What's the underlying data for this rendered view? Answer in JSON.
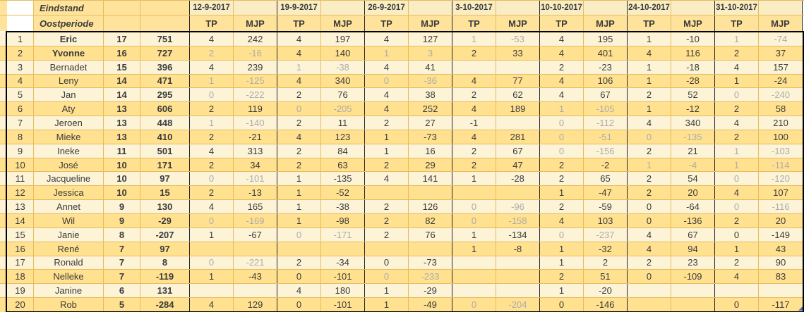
{
  "header": {
    "title": "Eindstand",
    "subtitle": "Oostperiode",
    "dates": [
      "12-9-2017",
      "19-9-2017",
      "26-9-2017",
      "3-10-2017",
      "10-10-2017",
      "24-10-2017",
      "31-10-2017"
    ],
    "tp_label": "TP",
    "mjp_label": "MJP"
  },
  "colors": {
    "band_light": "#FDF3D6",
    "band_gold": "#FFE18F",
    "header_gold": "#FFE39B",
    "header_pale": "#FAEDC4",
    "grid_line": "#E5BC5F",
    "dark_line": "#262626",
    "text": "#3B3B3B",
    "text_dim": "#ACACAC",
    "marker_blue": "#4A6FB5"
  },
  "rows": [
    {
      "rank": "1",
      "name": "Eric",
      "bold": true,
      "total_tp": "17",
      "total_mjp": "751",
      "scores": [
        {
          "tp": "4",
          "mjp": "242",
          "dim": false
        },
        {
          "tp": "4",
          "mjp": "197",
          "dim": false
        },
        {
          "tp": "4",
          "mjp": "127",
          "dim": false
        },
        {
          "tp": "1",
          "mjp": "-53",
          "dim": true
        },
        {
          "tp": "4",
          "mjp": "195",
          "dim": false
        },
        {
          "tp": "1",
          "mjp": "-10",
          "dim": false
        },
        {
          "tp": "1",
          "mjp": "-74",
          "dim": true
        }
      ]
    },
    {
      "rank": "2",
      "name": "Yvonne",
      "bold": true,
      "total_tp": "16",
      "total_mjp": "727",
      "scores": [
        {
          "tp": "2",
          "mjp": "-16",
          "dim": true
        },
        {
          "tp": "4",
          "mjp": "140",
          "dim": false
        },
        {
          "tp": "1",
          "mjp": "3",
          "dim": true
        },
        {
          "tp": "2",
          "mjp": "33",
          "dim": false
        },
        {
          "tp": "4",
          "mjp": "401",
          "dim": false
        },
        {
          "tp": "4",
          "mjp": "116",
          "dim": false
        },
        {
          "tp": "2",
          "mjp": "37",
          "dim": false
        }
      ]
    },
    {
      "rank": "3",
      "name": "Bernadet",
      "bold": false,
      "total_tp": "15",
      "total_mjp": "396",
      "scores": [
        {
          "tp": "4",
          "mjp": "239",
          "dim": false
        },
        {
          "tp": "1",
          "mjp": "-38",
          "dim": true
        },
        {
          "tp": "4",
          "mjp": "41",
          "dim": false
        },
        {
          "tp": "",
          "mjp": "",
          "dim": false
        },
        {
          "tp": "2",
          "mjp": "-23",
          "dim": false
        },
        {
          "tp": "1",
          "mjp": "-18",
          "dim": false
        },
        {
          "tp": "4",
          "mjp": "157",
          "dim": false
        }
      ]
    },
    {
      "rank": "4",
      "name": "Leny",
      "bold": false,
      "total_tp": "14",
      "total_mjp": "471",
      "scores": [
        {
          "tp": "1",
          "mjp": "-125",
          "dim": true
        },
        {
          "tp": "4",
          "mjp": "340",
          "dim": false
        },
        {
          "tp": "0",
          "mjp": "-36",
          "dim": true
        },
        {
          "tp": "4",
          "mjp": "77",
          "dim": false
        },
        {
          "tp": "4",
          "mjp": "106",
          "dim": false
        },
        {
          "tp": "1",
          "mjp": "-28",
          "dim": false
        },
        {
          "tp": "1",
          "mjp": "-24",
          "dim": false
        }
      ]
    },
    {
      "rank": "5",
      "name": "Jan",
      "bold": false,
      "total_tp": "14",
      "total_mjp": "295",
      "scores": [
        {
          "tp": "0",
          "mjp": "-222",
          "dim": true
        },
        {
          "tp": "2",
          "mjp": "76",
          "dim": false
        },
        {
          "tp": "4",
          "mjp": "38",
          "dim": false
        },
        {
          "tp": "2",
          "mjp": "62",
          "dim": false
        },
        {
          "tp": "4",
          "mjp": "67",
          "dim": false
        },
        {
          "tp": "2",
          "mjp": "52",
          "dim": false
        },
        {
          "tp": "0",
          "mjp": "-240",
          "dim": true
        }
      ]
    },
    {
      "rank": "6",
      "name": "Aty",
      "bold": false,
      "total_tp": "13",
      "total_mjp": "606",
      "scores": [
        {
          "tp": "2",
          "mjp": "119",
          "dim": false
        },
        {
          "tp": "0",
          "mjp": "-205",
          "dim": true
        },
        {
          "tp": "4",
          "mjp": "252",
          "dim": false
        },
        {
          "tp": "4",
          "mjp": "189",
          "dim": false
        },
        {
          "tp": "1",
          "mjp": "-105",
          "dim": true
        },
        {
          "tp": "1",
          "mjp": "-12",
          "dim": false
        },
        {
          "tp": "2",
          "mjp": "58",
          "dim": false
        }
      ]
    },
    {
      "rank": "7",
      "name": "Jeroen",
      "bold": false,
      "total_tp": "13",
      "total_mjp": "448",
      "scores": [
        {
          "tp": "1",
          "mjp": "-140",
          "dim": true
        },
        {
          "tp": "2",
          "mjp": "11",
          "dim": false
        },
        {
          "tp": "2",
          "mjp": "27",
          "dim": false
        },
        {
          "tp": "-1",
          "mjp": "",
          "dim": false
        },
        {
          "tp": "0",
          "mjp": "-112",
          "dim": true
        },
        {
          "tp": "4",
          "mjp": "340",
          "dim": false
        },
        {
          "tp": "4",
          "mjp": "210",
          "dim": false
        }
      ]
    },
    {
      "rank": "8",
      "name": "Mieke",
      "bold": false,
      "total_tp": "13",
      "total_mjp": "410",
      "scores": [
        {
          "tp": "2",
          "mjp": "-21",
          "dim": false
        },
        {
          "tp": "4",
          "mjp": "123",
          "dim": false
        },
        {
          "tp": "1",
          "mjp": "-73",
          "dim": false
        },
        {
          "tp": "4",
          "mjp": "281",
          "dim": false
        },
        {
          "tp": "0",
          "mjp": "-51",
          "dim": true
        },
        {
          "tp": "0",
          "mjp": "-135",
          "dim": true
        },
        {
          "tp": "2",
          "mjp": "100",
          "dim": false
        }
      ]
    },
    {
      "rank": "9",
      "name": "Ineke",
      "bold": false,
      "total_tp": "11",
      "total_mjp": "501",
      "scores": [
        {
          "tp": "4",
          "mjp": "313",
          "dim": false
        },
        {
          "tp": "2",
          "mjp": "84",
          "dim": false
        },
        {
          "tp": "1",
          "mjp": "16",
          "dim": false
        },
        {
          "tp": "2",
          "mjp": "67",
          "dim": false
        },
        {
          "tp": "0",
          "mjp": "-156",
          "dim": true
        },
        {
          "tp": "2",
          "mjp": "21",
          "dim": false
        },
        {
          "tp": "1",
          "mjp": "-103",
          "dim": true
        }
      ]
    },
    {
      "rank": "10",
      "name": "José",
      "bold": false,
      "total_tp": "10",
      "total_mjp": "171",
      "scores": [
        {
          "tp": "2",
          "mjp": "34",
          "dim": false
        },
        {
          "tp": "2",
          "mjp": "63",
          "dim": false
        },
        {
          "tp": "2",
          "mjp": "29",
          "dim": false
        },
        {
          "tp": "2",
          "mjp": "47",
          "dim": false
        },
        {
          "tp": "2",
          "mjp": "-2",
          "dim": false
        },
        {
          "tp": "1",
          "mjp": "-4",
          "dim": true
        },
        {
          "tp": "1",
          "mjp": "-114",
          "dim": true
        }
      ]
    },
    {
      "rank": "11",
      "name": "Jacqueline",
      "bold": false,
      "total_tp": "10",
      "total_mjp": "97",
      "scores": [
        {
          "tp": "0",
          "mjp": "-101",
          "dim": true
        },
        {
          "tp": "1",
          "mjp": "-135",
          "dim": false
        },
        {
          "tp": "4",
          "mjp": "141",
          "dim": false
        },
        {
          "tp": "1",
          "mjp": "-28",
          "dim": false
        },
        {
          "tp": "2",
          "mjp": "65",
          "dim": false
        },
        {
          "tp": "2",
          "mjp": "54",
          "dim": false
        },
        {
          "tp": "0",
          "mjp": "-120",
          "dim": true
        }
      ]
    },
    {
      "rank": "12",
      "name": "Jessica",
      "bold": false,
      "total_tp": "10",
      "total_mjp": "15",
      "scores": [
        {
          "tp": "2",
          "mjp": "-13",
          "dim": false
        },
        {
          "tp": "1",
          "mjp": "-52",
          "dim": false
        },
        {
          "tp": "",
          "mjp": "",
          "dim": false
        },
        {
          "tp": "",
          "mjp": "",
          "dim": false
        },
        {
          "tp": "1",
          "mjp": "-47",
          "dim": false
        },
        {
          "tp": "2",
          "mjp": "20",
          "dim": false
        },
        {
          "tp": "4",
          "mjp": "107",
          "dim": false
        }
      ]
    },
    {
      "rank": "13",
      "name": "Annet",
      "bold": false,
      "total_tp": "9",
      "total_mjp": "130",
      "scores": [
        {
          "tp": "4",
          "mjp": "165",
          "dim": false
        },
        {
          "tp": "1",
          "mjp": "-38",
          "dim": false
        },
        {
          "tp": "2",
          "mjp": "126",
          "dim": false
        },
        {
          "tp": "0",
          "mjp": "-96",
          "dim": true
        },
        {
          "tp": "2",
          "mjp": "-59",
          "dim": false
        },
        {
          "tp": "0",
          "mjp": "-64",
          "dim": false
        },
        {
          "tp": "0",
          "mjp": "-116",
          "dim": true
        }
      ]
    },
    {
      "rank": "14",
      "name": "Wil",
      "bold": false,
      "total_tp": "9",
      "total_mjp": "-29",
      "scores": [
        {
          "tp": "0",
          "mjp": "-169",
          "dim": true
        },
        {
          "tp": "1",
          "mjp": "-98",
          "dim": false
        },
        {
          "tp": "2",
          "mjp": "82",
          "dim": false
        },
        {
          "tp": "0",
          "mjp": "-158",
          "dim": true
        },
        {
          "tp": "4",
          "mjp": "103",
          "dim": false
        },
        {
          "tp": "0",
          "mjp": "-136",
          "dim": false
        },
        {
          "tp": "2",
          "mjp": "20",
          "dim": false
        }
      ]
    },
    {
      "rank": "15",
      "name": "Janie",
      "bold": false,
      "total_tp": "8",
      "total_mjp": "-207",
      "scores": [
        {
          "tp": "1",
          "mjp": "-67",
          "dim": false
        },
        {
          "tp": "0",
          "mjp": "-171",
          "dim": true
        },
        {
          "tp": "2",
          "mjp": "76",
          "dim": false
        },
        {
          "tp": "1",
          "mjp": "-134",
          "dim": false
        },
        {
          "tp": "0",
          "mjp": "-237",
          "dim": true
        },
        {
          "tp": "4",
          "mjp": "67",
          "dim": false
        },
        {
          "tp": "0",
          "mjp": "-149",
          "dim": false
        }
      ]
    },
    {
      "rank": "16",
      "name": "René",
      "bold": false,
      "total_tp": "7",
      "total_mjp": "97",
      "scores": [
        {
          "tp": "",
          "mjp": "",
          "dim": false
        },
        {
          "tp": "",
          "mjp": "",
          "dim": false
        },
        {
          "tp": "",
          "mjp": "",
          "dim": false
        },
        {
          "tp": "1",
          "mjp": "-8",
          "dim": false
        },
        {
          "tp": "1",
          "mjp": "-32",
          "dim": false
        },
        {
          "tp": "4",
          "mjp": "94",
          "dim": false
        },
        {
          "tp": "1",
          "mjp": "43",
          "dim": false
        }
      ]
    },
    {
      "rank": "17",
      "name": "Ronald",
      "bold": false,
      "total_tp": "7",
      "total_mjp": "8",
      "scores": [
        {
          "tp": "0",
          "mjp": "-221",
          "dim": true
        },
        {
          "tp": "2",
          "mjp": "-34",
          "dim": false
        },
        {
          "tp": "0",
          "mjp": "-73",
          "dim": false
        },
        {
          "tp": "",
          "mjp": "",
          "dim": false
        },
        {
          "tp": "1",
          "mjp": "2",
          "dim": false
        },
        {
          "tp": "2",
          "mjp": "23",
          "dim": false
        },
        {
          "tp": "2",
          "mjp": "90",
          "dim": false
        }
      ]
    },
    {
      "rank": "18",
      "name": "Nelleke",
      "bold": false,
      "total_tp": "7",
      "total_mjp": "-119",
      "scores": [
        {
          "tp": "1",
          "mjp": "-43",
          "dim": false
        },
        {
          "tp": "0",
          "mjp": "-101",
          "dim": false
        },
        {
          "tp": "0",
          "mjp": "-233",
          "dim": true
        },
        {
          "tp": "",
          "mjp": "",
          "dim": false
        },
        {
          "tp": "2",
          "mjp": "51",
          "dim": false
        },
        {
          "tp": "0",
          "mjp": "-109",
          "dim": false
        },
        {
          "tp": "4",
          "mjp": "83",
          "dim": false
        }
      ]
    },
    {
      "rank": "19",
      "name": "Janine",
      "bold": false,
      "total_tp": "6",
      "total_mjp": "131",
      "scores": [
        {
          "tp": "",
          "mjp": "",
          "dim": false
        },
        {
          "tp": "4",
          "mjp": "180",
          "dim": false
        },
        {
          "tp": "1",
          "mjp": "-29",
          "dim": false
        },
        {
          "tp": "",
          "mjp": "",
          "dim": false
        },
        {
          "tp": "1",
          "mjp": "-20",
          "dim": false
        },
        {
          "tp": "",
          "mjp": "",
          "dim": false
        },
        {
          "tp": "",
          "mjp": "",
          "dim": false
        }
      ]
    },
    {
      "rank": "20",
      "name": "Rob",
      "bold": false,
      "total_tp": "5",
      "total_mjp": "-284",
      "scores": [
        {
          "tp": "4",
          "mjp": "129",
          "dim": false
        },
        {
          "tp": "0",
          "mjp": "-101",
          "dim": false
        },
        {
          "tp": "1",
          "mjp": "-49",
          "dim": false
        },
        {
          "tp": "0",
          "mjp": "-204",
          "dim": true
        },
        {
          "tp": "0",
          "mjp": "-146",
          "dim": false
        },
        {
          "tp": "",
          "mjp": "",
          "dim": false
        },
        {
          "tp": "0",
          "mjp": "-117",
          "dim": false
        }
      ]
    }
  ]
}
